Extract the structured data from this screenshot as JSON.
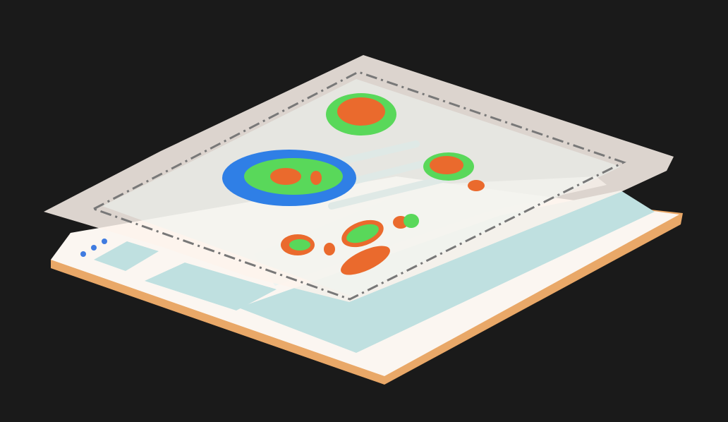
{
  "background": "#1a1a1a",
  "colors": {
    "browser_page": "#fbf6f1",
    "browser_edge": "#e9a868",
    "content_block": "#bfe0e0",
    "overlay_sheet": "#fdf3ec",
    "dashed_border": "#787878",
    "window_dots": "#3f7be0",
    "heat_cold": "#2f7fe6",
    "heat_warm": "#59d85a",
    "heat_hot": "#ea6a2d"
  },
  "icons": {
    "window_controls": "three-dot-window-controls-icon"
  }
}
